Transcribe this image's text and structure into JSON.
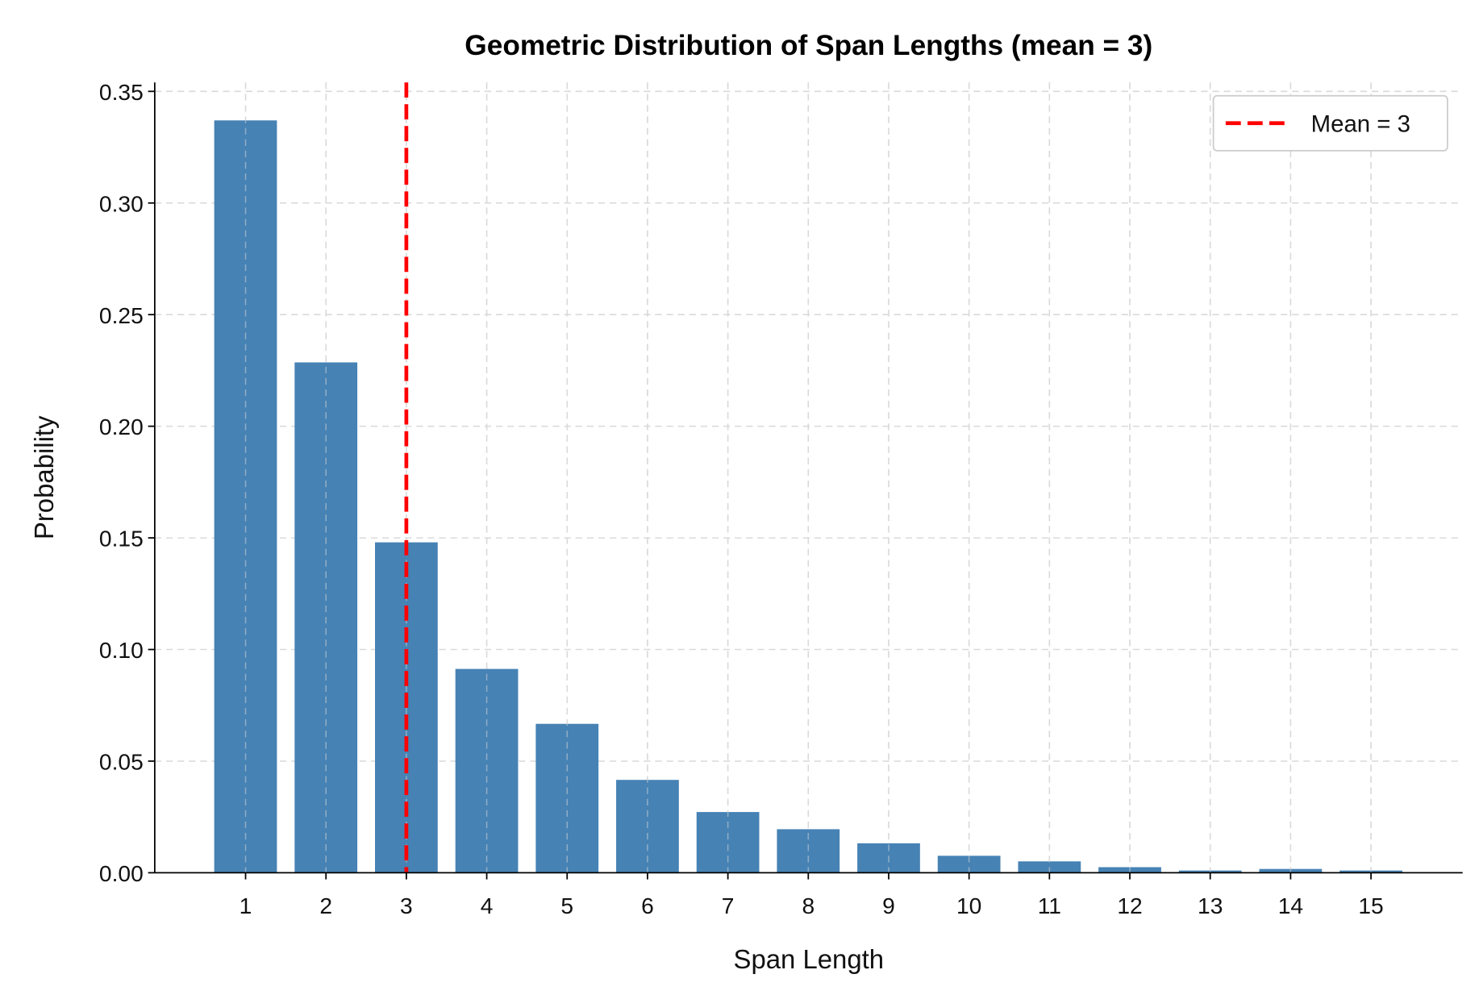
{
  "chart_data": {
    "type": "bar",
    "title": "Geometric Distribution of Span Lengths (mean = 3)",
    "xlabel": "Span Length",
    "ylabel": "Probability",
    "categories": [
      1,
      2,
      3,
      4,
      5,
      6,
      7,
      8,
      9,
      10,
      11,
      12,
      13,
      14,
      15
    ],
    "values": [
      0.337,
      0.2286,
      0.148,
      0.0913,
      0.0667,
      0.0416,
      0.0272,
      0.0195,
      0.0132,
      0.0076,
      0.0051,
      0.0025,
      0.001,
      0.0017,
      0.001
    ],
    "ylim": [
      0,
      0.354
    ],
    "yticks": [
      "0.00",
      "0.05",
      "0.10",
      "0.15",
      "0.20",
      "0.25",
      "0.30",
      "0.35"
    ],
    "grid": true,
    "bar_color": "#4682b4",
    "mean_line": {
      "x": 3,
      "label": "Mean = 3",
      "color": "#ff0000",
      "style": "dashed"
    },
    "legend": {
      "placement": "top-right",
      "entries": [
        "Mean = 3"
      ]
    }
  }
}
